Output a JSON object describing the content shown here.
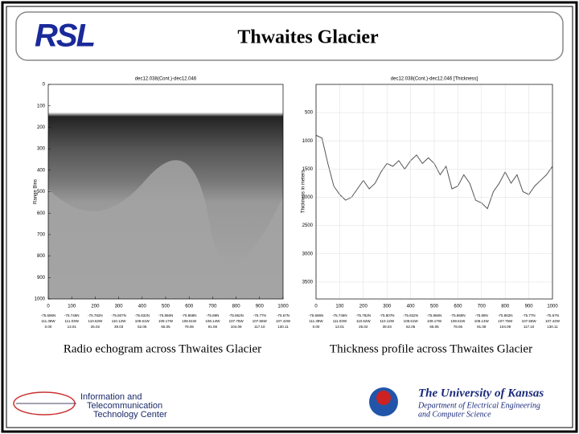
{
  "header": {
    "logo": "RSL",
    "title": "Thwaites Glacier"
  },
  "chart_data": [
    {
      "type": "image",
      "title": "dec12.038(Cont.)-dec12.046",
      "ylabel": "Range Bins",
      "xlim": [
        0,
        1000
      ],
      "xticks": [
        0,
        100,
        200,
        300,
        400,
        500,
        600,
        700,
        800,
        900,
        1000
      ],
      "ylim": [
        0,
        1000
      ],
      "yticks": [
        0,
        100,
        200,
        300,
        400,
        500,
        600,
        700,
        800,
        900,
        1000
      ],
      "y_inverted": true,
      "x_tick_details": [
        [
          "-75.696N",
          "111.38W",
          "0.00"
        ],
        [
          "-75.746N",
          "111.03W",
          "13.01"
        ],
        [
          "-75.782N",
          "110.62W",
          "26.02"
        ],
        [
          "-75.807N",
          "110.12W",
          "39.03"
        ],
        [
          "-75.832N",
          "109.61W",
          "52.05"
        ],
        [
          "-75.866N",
          "109.17W",
          "65.05"
        ],
        [
          "-75.868N",
          "108.61W",
          "78.06"
        ],
        [
          "-75.89N",
          "108.14W",
          "91.08"
        ],
        [
          "-75.862N",
          "107.75W",
          "104.09"
        ],
        [
          "-75.77N",
          "107.56W",
          "117.10"
        ],
        [
          "-75.67N",
          "107.42W",
          "130.11"
        ]
      ],
      "caption": "Radio echogram across Thwaites Glacier"
    },
    {
      "type": "line",
      "title": "dec12.038(Cont.)-dec12.046 [Thickness]",
      "ylabel": "Thickness in meters",
      "color": "#555555",
      "grid": true,
      "x": [
        0,
        25,
        50,
        75,
        100,
        125,
        150,
        175,
        200,
        225,
        250,
        275,
        300,
        325,
        350,
        375,
        400,
        425,
        450,
        475,
        500,
        525,
        550,
        575,
        600,
        625,
        650,
        675,
        700,
        725,
        750,
        775,
        800,
        825,
        850,
        875,
        900,
        925,
        950,
        975,
        1000
      ],
      "values": [
        900,
        950,
        1400,
        1800,
        1950,
        2050,
        2000,
        1850,
        1700,
        1850,
        1750,
        1550,
        1400,
        1450,
        1350,
        1500,
        1350,
        1250,
        1400,
        1300,
        1400,
        1600,
        1450,
        1850,
        1800,
        1600,
        1750,
        2050,
        2100,
        2200,
        1900,
        1750,
        1550,
        1750,
        1600,
        1900,
        1950,
        1800,
        1700,
        1600,
        1450
      ],
      "xlim": [
        0,
        1000
      ],
      "xticks": [
        0,
        100,
        200,
        300,
        400,
        500,
        600,
        700,
        800,
        900,
        1000
      ],
      "ylim": [
        0,
        3800
      ],
      "yticks": [
        500,
        1000,
        1500,
        2000,
        2500,
        3000,
        3500
      ],
      "y_inverted": true,
      "x_tick_details": [
        [
          "-75.696N",
          "111.38W",
          "0.00"
        ],
        [
          "-75.746N",
          "111.03W",
          "13.01"
        ],
        [
          "-75.782N",
          "110.62W",
          "26.02"
        ],
        [
          "-75.807N",
          "110.12W",
          "39.03"
        ],
        [
          "-75.832N",
          "109.61W",
          "52.05"
        ],
        [
          "-75.866N",
          "109.17W",
          "65.05"
        ],
        [
          "-75.868N",
          "108.61W",
          "78.06"
        ],
        [
          "-75.89N",
          "108.14W",
          "91.08"
        ],
        [
          "-75.862N",
          "107.75W",
          "104.09"
        ],
        [
          "-75.77N",
          "107.56W",
          "117.10"
        ],
        [
          "-75.67N",
          "107.42W",
          "130.11"
        ]
      ],
      "caption": "Thickness profile across Thwaites Glacier"
    }
  ],
  "footer": {
    "left": [
      "Information and",
      "Telecommunication",
      "Technology Center"
    ],
    "university": "The University of Kansas",
    "department": [
      "Department of Electrical Engineering",
      "and Computer Science"
    ]
  }
}
